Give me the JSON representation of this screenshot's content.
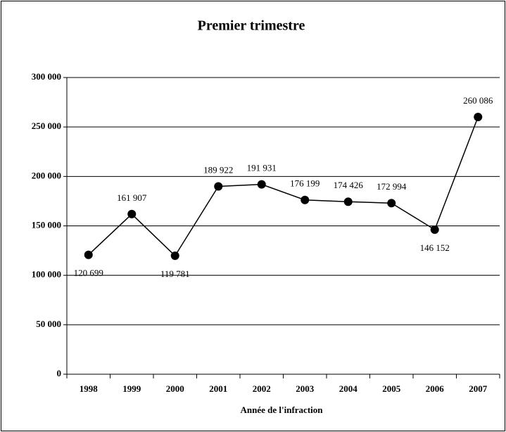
{
  "chart_data": {
    "type": "line",
    "title": "Premier trimestre",
    "x_label": "Année de l'infraction",
    "categories": [
      "1998",
      "1999",
      "2000",
      "2001",
      "2002",
      "2003",
      "2004",
      "2005",
      "2006",
      "2007"
    ],
    "series": [
      {
        "name": "Premier trimestre",
        "color": "#000000",
        "values": [
          120699,
          161907,
          119781,
          189922,
          191931,
          176199,
          174426,
          172994,
          146152,
          260086
        ],
        "value_labels": [
          "120 699",
          "161 907",
          "119 781",
          "189 922",
          "191 931",
          "176 199",
          "174 426",
          "172 994",
          "146 152",
          "260 086"
        ]
      }
    ],
    "ylim": [
      0,
      300000
    ],
    "yticks": [
      {
        "value": 0,
        "label": "0"
      },
      {
        "value": 50000,
        "label": "50 000"
      },
      {
        "value": 100000,
        "label": "100 000"
      },
      {
        "value": 150000,
        "label": "150 000"
      },
      {
        "value": 200000,
        "label": "200 000"
      },
      {
        "value": 250000,
        "label": "250 000"
      },
      {
        "value": 300000,
        "label": "300 000"
      }
    ],
    "grid": true
  }
}
